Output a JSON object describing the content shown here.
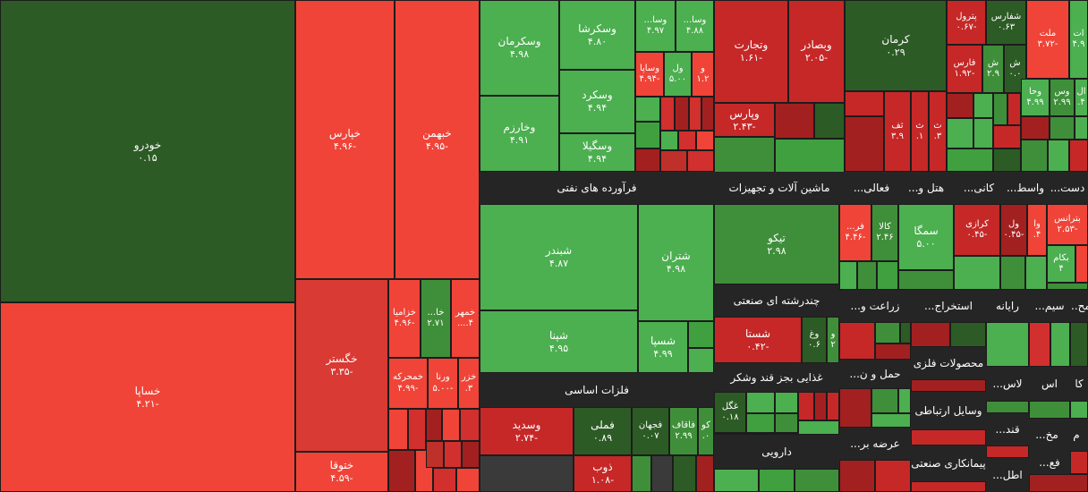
{
  "palette": {
    "dark_green": "#2d5b25",
    "green": "#40a040",
    "light_green": "#4caf50",
    "dark_red": "#a32020",
    "red": "#d22f2f",
    "light_red": "#f04438",
    "neutral": "#3a3a3a"
  },
  "groups": [
    {
      "id": "g1",
      "label": "فرآورده های نفتی"
    },
    {
      "id": "g2",
      "label": "ماشین آلات و تجهیزات"
    },
    {
      "id": "g3",
      "label": "فعالی..."
    },
    {
      "id": "g4",
      "label": "هتل و..."
    },
    {
      "id": "g5",
      "label": "کانی..."
    },
    {
      "id": "g6",
      "label": "واسط..."
    },
    {
      "id": "g7",
      "label": "دست..."
    },
    {
      "id": "g8",
      "label": "چندرشته ای صنعتی"
    },
    {
      "id": "g9",
      "label": "زراعت و..."
    },
    {
      "id": "g10",
      "label": "استخراج..."
    },
    {
      "id": "g11",
      "label": "رایانه"
    },
    {
      "id": "g12",
      "label": "سیم..."
    },
    {
      "id": "g13",
      "label": "مح..."
    },
    {
      "id": "g14",
      "label": "فلزات اساسی"
    },
    {
      "id": "g15",
      "label": "غذایی بجز قند وشکر"
    },
    {
      "id": "g16",
      "label": "حمل و ن..."
    },
    {
      "id": "g17",
      "label": "محصولات فلزی"
    },
    {
      "id": "g18",
      "label": "لاس..."
    },
    {
      "id": "g19",
      "label": "اس"
    },
    {
      "id": "g20",
      "label": "کا"
    },
    {
      "id": "g21",
      "label": "وسایل ارتباطی"
    },
    {
      "id": "g22",
      "label": "قند..."
    },
    {
      "id": "g23",
      "label": "مخ..."
    },
    {
      "id": "g24",
      "label": "م"
    },
    {
      "id": "g25",
      "label": "عرضه بر..."
    },
    {
      "id": "g26",
      "label": "فع..."
    },
    {
      "id": "g27",
      "label": "پیمانکاری صنعتی"
    },
    {
      "id": "g28",
      "label": "اطل..."
    },
    {
      "id": "g29",
      "label": "دارویی"
    }
  ],
  "tiles": [
    {
      "id": "khodro",
      "name": "خودرو",
      "value": "۰.۱۵",
      "change": 0.15
    },
    {
      "id": "khsapa",
      "name": "خساپا",
      "value": "-۴.۲۱",
      "change": -4.21
    },
    {
      "id": "khpars",
      "name": "خپارس",
      "value": "-۴.۹۶",
      "change": -4.96
    },
    {
      "id": "khbahman",
      "name": "خبهمن",
      "value": "-۴.۹۵",
      "change": -4.95
    },
    {
      "id": "khgostar",
      "name": "خگستر",
      "value": "-۳.۳۵",
      "change": -3.35
    },
    {
      "id": "khtoga",
      "name": "ختوقا",
      "value": "-۴.۵۹",
      "change": -4.59
    },
    {
      "id": "khzamia",
      "name": "خزامیا",
      "value": "-۴.۹۶",
      "change": -4.96
    },
    {
      "id": "kha",
      "name": "خا...",
      "value": "۲.۷۱",
      "change": 2.71
    },
    {
      "id": "khmehr",
      "name": "خمهر",
      "value": "۴....",
      "change": 4.5
    },
    {
      "id": "khmehrkeh",
      "name": "خمحرکه",
      "value": "-۴.۹۹",
      "change": -4.99
    },
    {
      "id": "khvorna",
      "name": "ورنا",
      "value": "-۵.۰۰",
      "change": -5.0
    },
    {
      "id": "khzar",
      "name": "خزر",
      "value": "۳.",
      "change": 3.0
    },
    {
      "id": "vskerman",
      "name": "وسکرمان",
      "value": "۴.۹۸",
      "change": 4.98
    },
    {
      "id": "vskarsha",
      "name": "وسکرشا",
      "value": "۴.۸۰",
      "change": 4.8
    },
    {
      "id": "vsa1",
      "name": "وسا...",
      "value": "۴.۹۷",
      "change": 4.97
    },
    {
      "id": "vsa2",
      "name": "وسا...",
      "value": "۴.۸۸",
      "change": 4.88
    },
    {
      "id": "vsapa",
      "name": "وساپا",
      "value": "-۴.۹۴",
      "change": -4.94
    },
    {
      "id": "vl",
      "name": "ول",
      "value": "۵.۰۰",
      "change": 5.0
    },
    {
      "id": "v",
      "name": "و",
      "value": "۱.۲",
      "change": 1.2
    },
    {
      "id": "vskord",
      "name": "وسکرد",
      "value": "۴.۹۴",
      "change": 4.94
    },
    {
      "id": "vkharazm",
      "name": "وخارزم",
      "value": "۴.۹۱",
      "change": 4.91
    },
    {
      "id": "vsgila",
      "name": "وسگیلا",
      "value": "۴.۹۴",
      "change": 4.94
    },
    {
      "id": "vtejarat",
      "name": "وتجارت",
      "value": "-۱.۶۱",
      "change": -1.61
    },
    {
      "id": "vbsader",
      "name": "وبصادر",
      "value": "-۲.۰۵",
      "change": -2.05
    },
    {
      "id": "vpars",
      "name": "وپارس",
      "value": "-۲.۴۳",
      "change": -2.43
    },
    {
      "id": "kerman",
      "name": "کرمان",
      "value": "۰.۲۹",
      "change": 0.29
    },
    {
      "id": "petrol",
      "name": "پترول",
      "value": "-۰.۶۷",
      "change": -0.67
    },
    {
      "id": "shefars",
      "name": "شفارس",
      "value": "۰.۶۳",
      "change": 0.63
    },
    {
      "id": "melat",
      "name": "ملت",
      "value": "-۳.۷۲",
      "change": -3.72
    },
    {
      "id": "at",
      "name": "ات",
      "value": "۴.۹",
      "change": 4.9
    },
    {
      "id": "fars",
      "name": "فارس",
      "value": "-۱.۹۲",
      "change": -1.92
    },
    {
      "id": "sh1",
      "name": "ش",
      "value": "۲.۹",
      "change": 2.9
    },
    {
      "id": "sh2",
      "name": "ش",
      "value": "۰.۰",
      "change": 0.0
    },
    {
      "id": "vha",
      "name": "وحا",
      "value": "۴.۹۹",
      "change": 4.99
    },
    {
      "id": "vs",
      "name": "وس",
      "value": "۲.۹۹",
      "change": 2.99
    },
    {
      "id": "al",
      "name": "ال",
      "value": "۴.",
      "change": 4.0
    },
    {
      "id": "thaf",
      "name": "ثف",
      "value": "۳.۹",
      "change": 3.9
    },
    {
      "id": "th1",
      "name": "ث",
      "value": "۱.",
      "change": 1.0
    },
    {
      "id": "th2",
      "name": "ث",
      "value": "۳.",
      "change": 3.0
    },
    {
      "id": "shbandar",
      "name": "شبندر",
      "value": "۴.۸۷",
      "change": 4.87
    },
    {
      "id": "shtran",
      "name": "شتران",
      "value": "۴.۹۸",
      "change": 4.98
    },
    {
      "id": "shpna",
      "name": "شپنا",
      "value": "۴.۹۵",
      "change": 4.95
    },
    {
      "id": "shspa",
      "name": "شسپا",
      "value": "۴.۹۹",
      "change": 4.99
    },
    {
      "id": "tiko",
      "name": "تیکو",
      "value": "۲.۹۸",
      "change": 2.98
    },
    {
      "id": "fr",
      "name": "فر...",
      "value": "-۴.۴۶",
      "change": -4.46
    },
    {
      "id": "kala",
      "name": "کالا",
      "value": "۲.۴۶",
      "change": 2.46
    },
    {
      "id": "semga",
      "name": "سمگا",
      "value": "۵.۰۰",
      "change": 5.0
    },
    {
      "id": "korazi",
      "name": "کرازی",
      "value": "-۰.۴۵",
      "change": -0.45
    },
    {
      "id": "vl2",
      "name": "ول",
      "value": "-۰.۴۵",
      "change": -0.45
    },
    {
      "id": "va",
      "name": "وا",
      "value": "۴.",
      "change": 4.0
    },
    {
      "id": "bterans",
      "name": "بترانس",
      "value": "-۲.۵۳",
      "change": -2.53
    },
    {
      "id": "bkam",
      "name": "بکام",
      "value": "۴",
      "change": 4.0
    },
    {
      "id": "shsta",
      "name": "شستا",
      "value": "-۰.۴۲",
      "change": -0.42
    },
    {
      "id": "vgh",
      "name": "وغ",
      "value": "۰.۶",
      "change": 0.6
    },
    {
      "id": "vv",
      "name": "و",
      "value": "۲",
      "change": 2.0
    },
    {
      "id": "vsdid",
      "name": "وسدید",
      "value": "-۲.۷۴",
      "change": -2.74
    },
    {
      "id": "fmli",
      "name": "فملی",
      "value": "۰.۸۹",
      "change": 0.89
    },
    {
      "id": "fjahan",
      "name": "فجهان",
      "value": "۰.۰۷",
      "change": 0.07
    },
    {
      "id": "faghaf",
      "name": "فاقاف",
      "value": "۲.۹۹",
      "change": 2.99
    },
    {
      "id": "ko",
      "name": "کو",
      "value": "۰.",
      "change": 0.0
    },
    {
      "id": "zob",
      "name": "ذوب",
      "value": "-۱.۰۸",
      "change": -1.08
    },
    {
      "id": "ghgol",
      "name": "غگل",
      "value": "۰.۱۸",
      "change": 0.18
    }
  ]
}
